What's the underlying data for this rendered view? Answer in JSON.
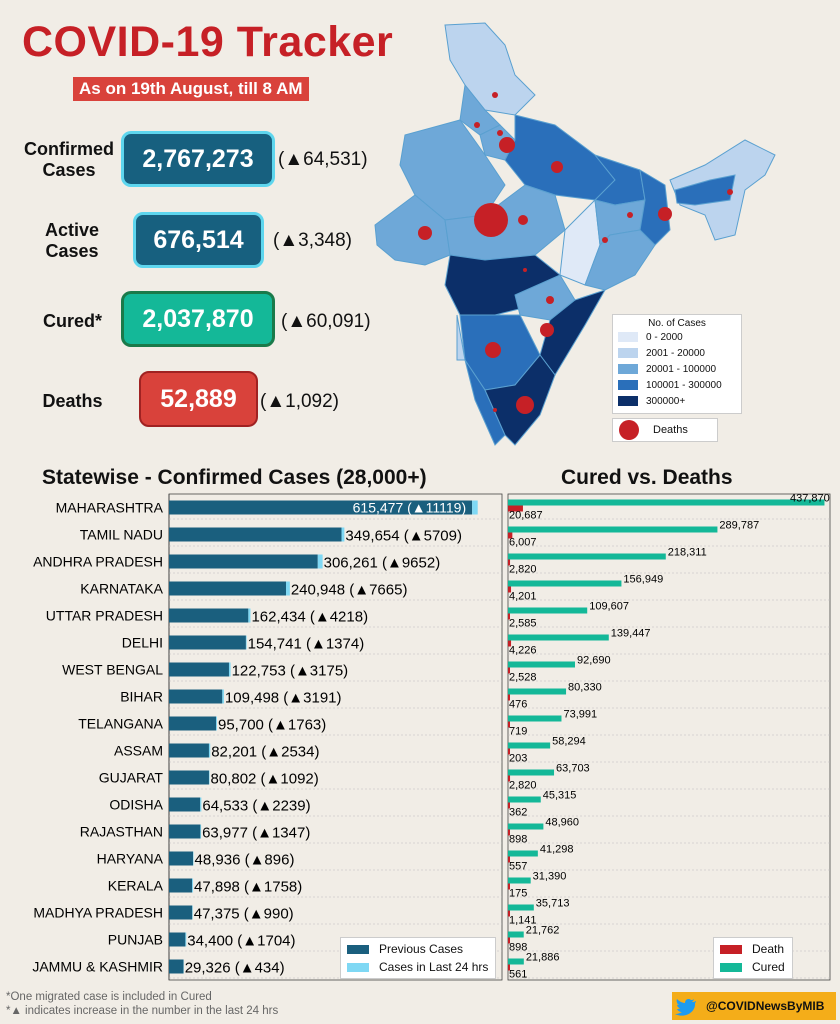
{
  "header": {
    "title": "COVID-19 Tracker",
    "subtitle": "As on 19th August, till 8 AM"
  },
  "stats": {
    "confirmed": {
      "label_line1": "Confirmed",
      "label_line2": "Cases",
      "value": "2,767,273",
      "delta": "(▲64,531)"
    },
    "active": {
      "label_line1": "Active",
      "label_line2": "Cases",
      "value": "676,514",
      "delta": "(▲3,348)"
    },
    "cured": {
      "label": "Cured*",
      "value": "2,037,870",
      "delta": "(▲60,091)"
    },
    "deaths": {
      "label": "Deaths",
      "value": "52,889",
      "delta": "(▲1,092)"
    }
  },
  "map_legend": {
    "title": "No. of Cases",
    "items": [
      {
        "label": "0 - 2000",
        "color": "#dfe9f7"
      },
      {
        "label": "2001 - 20000",
        "color": "#bcd4ee"
      },
      {
        "label": "20001 - 100000",
        "color": "#6ea8d8"
      },
      {
        "label": "100001 - 300000",
        "color": "#2a6fba"
      },
      {
        "label": "300000+",
        "color": "#0c2f69"
      }
    ],
    "deaths_label": "Deaths",
    "deaths_color": "#c62026"
  },
  "colors": {
    "previous": "#1a5f7e",
    "last24": "#7fd8f4",
    "cured": "#14b898",
    "death": "#c62026"
  },
  "chart_data": [
    {
      "type": "bar",
      "orientation": "horizontal",
      "stacked": true,
      "title": "Statewise - Confirmed Cases (28,000+)",
      "categories": [
        "MAHARASHTRA",
        "TAMIL NADU",
        "ANDHRA PRADESH",
        "KARNATAKA",
        "UTTAR PRADESH",
        "DELHI",
        "WEST BENGAL",
        "BIHAR",
        "TELANGANA",
        "ASSAM",
        "GUJARAT",
        "ODISHA",
        "RAJASTHAN",
        "HARYANA",
        "KERALA",
        "MADHYA PRADESH",
        "PUNJAB",
        "JAMMU & KASHMIR"
      ],
      "series": [
        {
          "name": "Previous Cases",
          "values": [
            604358,
            343945,
            296609,
            233283,
            158216,
            153367,
            119578,
            106307,
            93937,
            79667,
            79710,
            62294,
            62630,
            48040,
            46140,
            46385,
            32696,
            28892
          ]
        },
        {
          "name": "Cases in Last 24 hrs",
          "values": [
            11119,
            5709,
            9652,
            7665,
            4218,
            1374,
            3175,
            3191,
            1763,
            2534,
            1092,
            2239,
            1347,
            896,
            1758,
            990,
            1704,
            434
          ]
        }
      ],
      "totals_labels": [
        "615,477",
        "349,654",
        "306,261",
        "240,948",
        "162,434",
        "154,741",
        "122,753",
        "109,498",
        "95,700",
        "82,201",
        "80,802",
        "64,533",
        "63,977",
        "48,936",
        "47,898",
        "47,375",
        "34,400",
        "29,326"
      ],
      "increase_labels": [
        "(▲11119)",
        "(▲5709)",
        "(▲9652)",
        "(▲7665)",
        "(▲4218)",
        "(▲1374)",
        "(▲3175)",
        "(▲3191)",
        "(▲1763)",
        "(▲2534)",
        "(▲1092)",
        "(▲2239)",
        "(▲1347)",
        "(▲896)",
        "(▲1758)",
        "(▲990)",
        "(▲1704)",
        "(▲434)"
      ],
      "xlim": [
        0,
        640000
      ],
      "legend": "bottom-right"
    },
    {
      "type": "bar",
      "orientation": "horizontal",
      "title": "Cured vs. Deaths",
      "categories": [
        "MAHARASHTRA",
        "TAMIL NADU",
        "ANDHRA PRADESH",
        "KARNATAKA",
        "UTTAR PRADESH",
        "DELHI",
        "WEST BENGAL",
        "BIHAR",
        "TELANGANA",
        "ASSAM",
        "GUJARAT",
        "ODISHA",
        "RAJASTHAN",
        "HARYANA",
        "KERALA",
        "MADHYA PRADESH",
        "PUNJAB",
        "JAMMU & KASHMIR"
      ],
      "series": [
        {
          "name": "Cured",
          "values": [
            437870,
            289787,
            218311,
            156949,
            109607,
            139447,
            92690,
            80330,
            73991,
            58294,
            63703,
            45315,
            48960,
            41298,
            31390,
            35713,
            21762,
            21886
          ],
          "labels": [
            "437,870",
            "289,787",
            "218,311",
            "156,949",
            "109,607",
            "139,447",
            "92,690",
            "80,330",
            "73,991",
            "58,294",
            "63,703",
            "45,315",
            "48,960",
            "41,298",
            "31,390",
            "35,713",
            "21,762",
            "21,886"
          ]
        },
        {
          "name": "Death",
          "values": [
            20687,
            6007,
            2820,
            4201,
            2585,
            4226,
            2528,
            476,
            719,
            203,
            2820,
            362,
            898,
            557,
            175,
            1141,
            898,
            561
          ],
          "labels": [
            "20,687",
            "6,007",
            "2,820",
            "4,201",
            "2,585",
            "4,226",
            "2,528",
            "476",
            "719",
            "203",
            "2,820",
            "362",
            "898",
            "557",
            "175",
            "1,141",
            "898",
            "561"
          ]
        }
      ],
      "xlim": [
        0,
        440000
      ],
      "legend": "bottom-right"
    }
  ],
  "footnotes": [
    "*One migrated case is included in Cured",
    "*▲ indicates increase in the number in the last 24 hrs"
  ],
  "handle": "@COVIDNewsByMIB"
}
